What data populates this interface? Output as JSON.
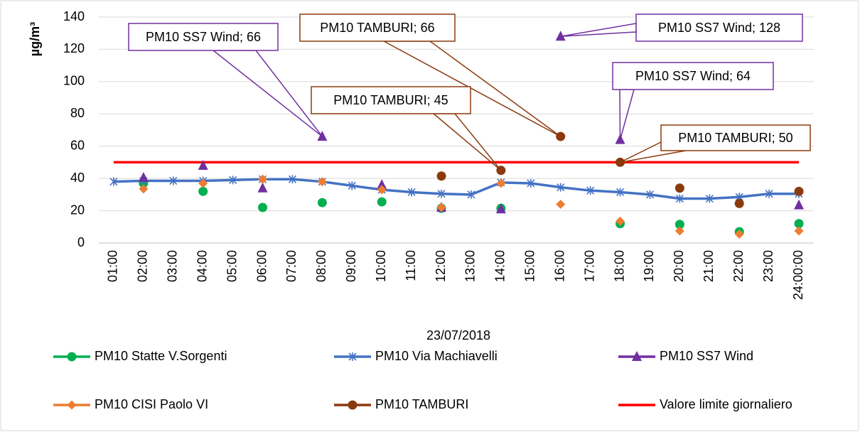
{
  "chart_data": {
    "type": "line",
    "x_label": "23/07/2018",
    "y_label": "µg/m³",
    "categories": [
      "01:00",
      "02:00",
      "03:00",
      "04:00",
      "05:00",
      "06:00",
      "07:00",
      "08:00",
      "09:00",
      "10:00",
      "11:00",
      "12:00",
      "13:00",
      "14:00",
      "15:00",
      "16:00",
      "17:00",
      "18:00",
      "19:00",
      "20:00",
      "21:00",
      "22:00",
      "23:00",
      "24:00:00"
    ],
    "ylim": [
      0,
      140
    ],
    "yticks": [
      0,
      20,
      40,
      60,
      80,
      100,
      120,
      140
    ],
    "grid": true,
    "legend": "bottom",
    "series": [
      {
        "name": "PM10 Statte V.Sorgenti",
        "color": "#00b050",
        "marker": "circle",
        "line": false,
        "values": [
          null,
          37,
          null,
          32,
          null,
          22,
          null,
          25,
          null,
          25.5,
          null,
          21.5,
          null,
          21.5,
          null,
          null,
          null,
          12,
          null,
          11.5,
          null,
          7,
          null,
          12
        ]
      },
      {
        "name": "PM10 Via Machiavelli",
        "color": "#4472c4",
        "marker": "star",
        "line": true,
        "values": [
          38,
          38.5,
          38.5,
          38.5,
          39,
          39.5,
          39.5,
          38,
          35.5,
          33,
          31.5,
          30.5,
          30,
          37.5,
          37,
          34.5,
          32.5,
          31.5,
          30,
          27.5,
          27.5,
          28.5,
          30.5,
          30.5
        ]
      },
      {
        "name": "PM10  SS7 Wind",
        "color": "#7030a0",
        "marker": "triangle",
        "line": false,
        "values": [
          null,
          40.5,
          null,
          48,
          null,
          34,
          null,
          66,
          null,
          36,
          null,
          22,
          null,
          21,
          null,
          128,
          null,
          64,
          null,
          null,
          null,
          null,
          null,
          23.5
        ]
      },
      {
        "name": "PM10 CISI Paolo VI",
        "color": "#ed7d31",
        "marker": "diamond",
        "line": false,
        "values": [
          null,
          33.5,
          null,
          37,
          null,
          39.5,
          null,
          38,
          null,
          33,
          null,
          22,
          null,
          37,
          null,
          24,
          null,
          13.5,
          null,
          7.5,
          null,
          5.5,
          null,
          7.5
        ]
      },
      {
        "name": "PM10 TAMBURI",
        "color": "#8b3a0e",
        "marker": "circle",
        "line": false,
        "values": [
          null,
          null,
          null,
          null,
          null,
          null,
          null,
          null,
          null,
          null,
          null,
          41.5,
          null,
          45,
          null,
          66,
          null,
          50,
          null,
          34,
          null,
          24.5,
          null,
          32
        ]
      },
      {
        "name": "Valore limite giornaliero",
        "color": "#ff0000",
        "marker": "none",
        "line": true,
        "values": [
          50,
          50,
          50,
          50,
          50,
          50,
          50,
          50,
          50,
          50,
          50,
          50,
          50,
          50,
          50,
          50,
          50,
          50,
          50,
          50,
          50,
          50,
          50,
          50
        ]
      }
    ],
    "annotations": [
      {
        "text": "PM10  SS7 Wind; 66"
      },
      {
        "text": "PM10 TAMBURI; 66"
      },
      {
        "text": "PM10  SS7 Wind; 128"
      },
      {
        "text": "PM10  SS7 Wind; 64"
      },
      {
        "text": "PM10 TAMBURI; 45"
      },
      {
        "text": "PM10 TAMBURI; 50"
      }
    ]
  }
}
